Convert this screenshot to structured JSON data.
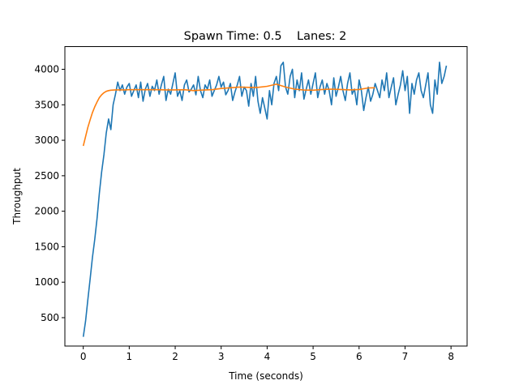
{
  "chart_data": {
    "type": "line",
    "title": "Spawn Time: 0.5    Lanes: 2",
    "xlabel": "Time (seconds)",
    "ylabel": "Throughput",
    "xlim": [
      -0.4,
      8.35
    ],
    "ylim": [
      100,
      4320
    ],
    "xticks": [
      0,
      1,
      2,
      3,
      4,
      5,
      6,
      7,
      8
    ],
    "yticks": [
      500,
      1000,
      1500,
      2000,
      2500,
      3000,
      3500,
      4000
    ],
    "grid": false,
    "legend": "none",
    "series": [
      {
        "color": "#1f77b4",
        "x": [
          0,
          0.05,
          0.1,
          0.15,
          0.2,
          0.25,
          0.3,
          0.35,
          0.4,
          0.45,
          0.5,
          0.55,
          0.6,
          0.65,
          0.7,
          0.75,
          0.8,
          0.85,
          0.9,
          0.95,
          1.0,
          1.05,
          1.1,
          1.15,
          1.2,
          1.25,
          1.3,
          1.35,
          1.4,
          1.45,
          1.5,
          1.55,
          1.6,
          1.65,
          1.7,
          1.75,
          1.8,
          1.85,
          1.9,
          1.95,
          2.0,
          2.05,
          2.1,
          2.15,
          2.2,
          2.25,
          2.3,
          2.35,
          2.4,
          2.45,
          2.5,
          2.55,
          2.6,
          2.65,
          2.7,
          2.75,
          2.8,
          2.85,
          2.9,
          2.95,
          3.0,
          3.05,
          3.1,
          3.15,
          3.2,
          3.25,
          3.3,
          3.35,
          3.4,
          3.45,
          3.5,
          3.55,
          3.6,
          3.65,
          3.7,
          3.75,
          3.8,
          3.85,
          3.9,
          3.95,
          4.0,
          4.05,
          4.1,
          4.15,
          4.2,
          4.25,
          4.3,
          4.35,
          4.4,
          4.45,
          4.5,
          4.55,
          4.6,
          4.65,
          4.7,
          4.75,
          4.8,
          4.85,
          4.9,
          4.95,
          5.0,
          5.05,
          5.1,
          5.15,
          5.2,
          5.25,
          5.3,
          5.35,
          5.4,
          5.45,
          5.5,
          5.55,
          5.6,
          5.65,
          5.7,
          5.75,
          5.8,
          5.85,
          5.9,
          5.95,
          6.0,
          6.05,
          6.1,
          6.15,
          6.2,
          6.25,
          6.3,
          6.35,
          6.4,
          6.45,
          6.5,
          6.55,
          6.6,
          6.65,
          6.7,
          6.75,
          6.8,
          6.85,
          6.9,
          6.95,
          7.0,
          7.05,
          7.1,
          7.15,
          7.2,
          7.25,
          7.3,
          7.35,
          7.4,
          7.45,
          7.5,
          7.55,
          7.6,
          7.65,
          7.7,
          7.75,
          7.8,
          7.85,
          7.9
        ],
        "values": [
          230,
          450,
          750,
          1050,
          1350,
          1600,
          1900,
          2250,
          2550,
          2800,
          3100,
          3300,
          3150,
          3500,
          3650,
          3820,
          3700,
          3780,
          3650,
          3750,
          3800,
          3620,
          3700,
          3780,
          3600,
          3820,
          3550,
          3720,
          3800,
          3620,
          3760,
          3700,
          3850,
          3650,
          3780,
          3900,
          3560,
          3720,
          3650,
          3800,
          3950,
          3620,
          3700,
          3560,
          3780,
          3850,
          3680,
          3720,
          3780,
          3640,
          3900,
          3700,
          3600,
          3780,
          3720,
          3850,
          3620,
          3700,
          3780,
          3900,
          3750,
          3820,
          3640,
          3700,
          3800,
          3560,
          3680,
          3780,
          3900,
          3620,
          3750,
          3700,
          3480,
          3800,
          3620,
          3900,
          3550,
          3380,
          3600,
          3450,
          3300,
          3700,
          3500,
          3800,
          3900,
          3700,
          4050,
          4100,
          3750,
          3650,
          3900,
          4000,
          3600,
          3850,
          3700,
          3950,
          3580,
          3720,
          3850,
          3650,
          3800,
          3950,
          3600,
          3750,
          3850,
          3650,
          3800,
          3700,
          3500,
          3880,
          3620,
          3750,
          3900,
          3700,
          3560,
          3800,
          3950,
          3650,
          3720,
          3500,
          3850,
          3700,
          3420,
          3600,
          3750,
          3550,
          3650,
          3800,
          3700,
          3600,
          3850,
          3700,
          3950,
          3600,
          3750,
          3880,
          3500,
          3650,
          3780,
          3980,
          3700,
          3900,
          3380,
          3800,
          3650,
          3850,
          3950,
          3700,
          3600,
          3780,
          3950,
          3500,
          3380,
          3850,
          3650,
          4100,
          3800,
          3900,
          4050
        ]
      },
      {
        "color": "#ff7f0e",
        "x": [
          0,
          0.05,
          0.1,
          0.15,
          0.2,
          0.25,
          0.3,
          0.35,
          0.4,
          0.45,
          0.5,
          0.55,
          0.6,
          0.7,
          0.8,
          0.9,
          1.0,
          1.2,
          1.4,
          1.6,
          1.8,
          2.0,
          2.2,
          2.4,
          2.6,
          2.8,
          3.0,
          3.2,
          3.4,
          3.6,
          3.8,
          4.0,
          4.2,
          4.4,
          4.6,
          4.8,
          5.0,
          5.2,
          5.4,
          5.6,
          5.8,
          6.0,
          6.2,
          6.35
        ],
        "values": [
          2920,
          3050,
          3180,
          3290,
          3390,
          3470,
          3540,
          3600,
          3640,
          3670,
          3690,
          3700,
          3705,
          3710,
          3710,
          3710,
          3712,
          3712,
          3712,
          3712,
          3710,
          3710,
          3712,
          3700,
          3708,
          3712,
          3730,
          3740,
          3750,
          3745,
          3745,
          3760,
          3790,
          3750,
          3720,
          3708,
          3706,
          3716,
          3720,
          3716,
          3710,
          3716,
          3738,
          3740
        ]
      }
    ]
  }
}
